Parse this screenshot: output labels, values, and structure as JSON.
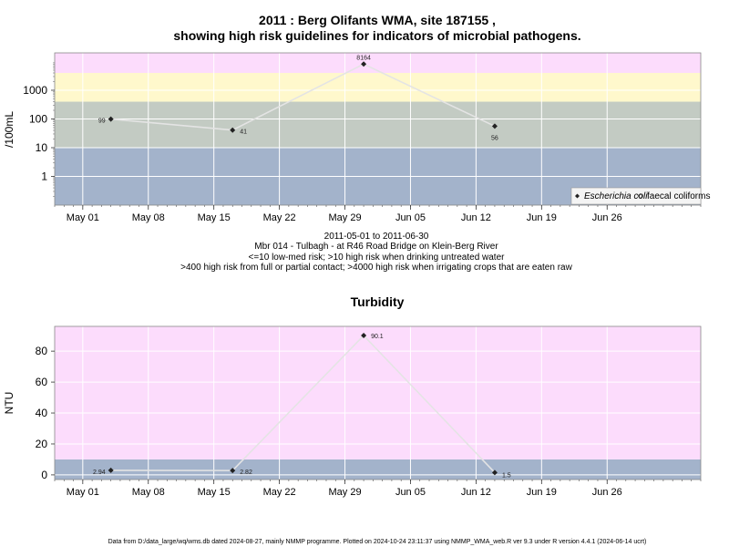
{
  "page": {
    "footer": "Data from D:/data_large/wq/wms.db dated 2024-08-27, mainly NMMP programme. Plotted on 2024-10-24 23:11:37 using NMMP_WMA_web.R ver 9.3 under R version 4.4.1 (2024-06-14 ucrt)"
  },
  "colors": {
    "band_blue": "#a3b3cb",
    "band_green": "#c3cbc3",
    "band_yellow": "#fff8cc",
    "band_pink": "#fcdcfc",
    "line": "#e4e4e4",
    "point": "#222222"
  },
  "chart_data": [
    {
      "type": "line",
      "title_line1": "2011 : Berg Olifants WMA, site 187155 ,",
      "title_line2": "showing high risk guidelines for indicators of microbial pathogens.",
      "ylabel": "/100mL",
      "y_scale": "log",
      "x_ticks": [
        "May 01",
        "May 08",
        "May 15",
        "May 22",
        "May 29",
        "Jun 05",
        "Jun 12",
        "Jun 19",
        "Jun 26"
      ],
      "y_ticks": [
        "1",
        "10",
        "100",
        "1000"
      ],
      "xlim": [
        "2011-04-28",
        "2011-07-06"
      ],
      "ylim": [
        0.1,
        20000
      ],
      "bands": [
        {
          "from": 0.1,
          "to": 10,
          "color": "#a3b3cb"
        },
        {
          "from": 10,
          "to": 400,
          "color": "#c3cbc3"
        },
        {
          "from": 400,
          "to": 4000,
          "color": "#fff8cc"
        },
        {
          "from": 4000,
          "to": 20000,
          "color": "#fcdcfc"
        }
      ],
      "series": [
        {
          "name": "Escherichia coli",
          "x": [
            "2011-05-04",
            "2011-05-17",
            "2011-05-31",
            "2011-06-14"
          ],
          "values": [
            99,
            41,
            8164,
            56
          ],
          "labels": [
            "99",
            "41",
            "8164",
            "56"
          ]
        }
      ],
      "legend": {
        "position": "bottom-right",
        "items": [
          "Escherichia coli",
          "faecal coliforms"
        ]
      },
      "grid": true,
      "caption": [
        "2011-05-01 to 2011-06-30",
        "Mbr 014 - Tulbagh - at R46 Road Bridge on Klein-Berg River",
        "<=10 low-med risk; >10 high risk when drinking untreated water",
        ">400 high risk from full or partial contact; >4000 high risk when irrigating crops that are eaten raw"
      ]
    },
    {
      "type": "line",
      "title": "Turbidity",
      "ylabel": "NTU",
      "y_scale": "linear",
      "x_ticks": [
        "May 01",
        "May 08",
        "May 15",
        "May 22",
        "May 29",
        "Jun 05",
        "Jun 12",
        "Jun 19",
        "Jun 26"
      ],
      "y_ticks": [
        "0",
        "20",
        "40",
        "60",
        "80"
      ],
      "xlim": [
        "2011-04-28",
        "2011-07-06"
      ],
      "ylim": [
        -3,
        96
      ],
      "bands": [
        {
          "from": -3,
          "to": 10,
          "color": "#a3b3cb"
        },
        {
          "from": 10,
          "to": 96,
          "color": "#fcdcfc"
        }
      ],
      "series": [
        {
          "x": [
            "2011-05-04",
            "2011-05-17",
            "2011-05-31",
            "2011-06-14"
          ],
          "values": [
            2.94,
            2.82,
            90.1,
            1.5
          ],
          "labels": [
            "2.94",
            "2.82",
            "90.1",
            "1.5"
          ]
        }
      ],
      "grid": true
    }
  ]
}
